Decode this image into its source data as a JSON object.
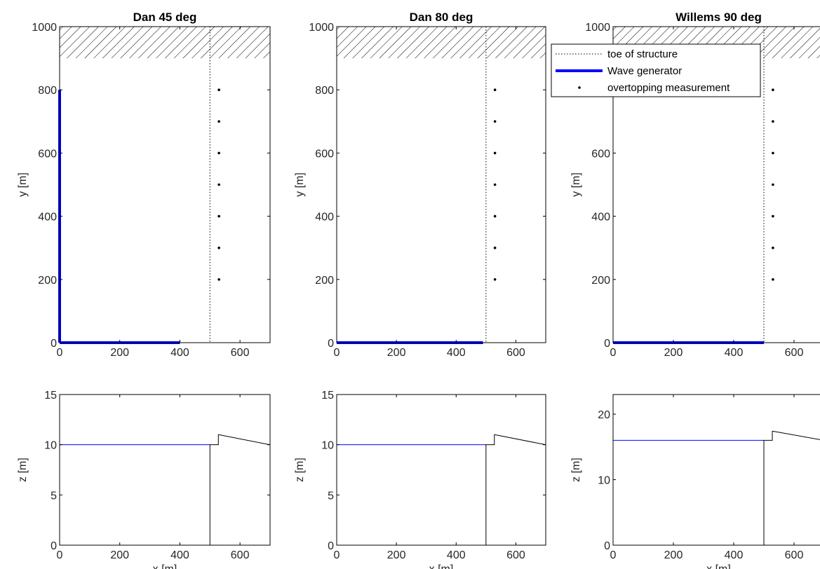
{
  "colors": {
    "wave_generator": "#0000ff",
    "water_level": "#0000ff",
    "structure": "#000000",
    "toe_line": "#000000",
    "points": "#000000",
    "hatch": "#000000"
  },
  "legend": {
    "placement": "top-right of third upper panel",
    "entries": [
      {
        "label": "toe of structure",
        "style": "dotted"
      },
      {
        "label": "Wave generator",
        "style": "thick-blue"
      },
      {
        "label": "overtopping measurement",
        "style": "dot"
      }
    ]
  },
  "chart_data": [
    {
      "type": "line",
      "title": "Dan 45 deg",
      "xlabel": "",
      "ylabel": "y [m]",
      "xlim": [
        0,
        700
      ],
      "ylim": [
        0,
        1000
      ],
      "xticks": [
        0,
        200,
        400,
        600
      ],
      "yticks": [
        0,
        200,
        400,
        600,
        800,
        1000
      ],
      "hatched_region": {
        "x": [
          0,
          700
        ],
        "y": [
          900,
          1000
        ]
      },
      "toe_of_structure_x": 500,
      "wave_generator": [
        {
          "x": [
            0,
            0
          ],
          "y": [
            800,
            0
          ]
        },
        {
          "x": [
            0,
            400
          ],
          "y": [
            0,
            0
          ]
        }
      ],
      "overtopping_points": {
        "x": [
          530,
          530,
          530,
          530,
          530,
          530,
          530
        ],
        "y": [
          200,
          300,
          400,
          500,
          600,
          700,
          800
        ]
      }
    },
    {
      "type": "line",
      "title": "Dan 80 deg",
      "xlabel": "",
      "ylabel": "y [m]",
      "xlim": [
        0,
        700
      ],
      "ylim": [
        0,
        1000
      ],
      "xticks": [
        0,
        200,
        400,
        600
      ],
      "yticks": [
        0,
        200,
        400,
        600,
        800,
        1000
      ],
      "hatched_region": {
        "x": [
          0,
          700
        ],
        "y": [
          900,
          1000
        ]
      },
      "toe_of_structure_x": 500,
      "wave_generator": [
        {
          "x": [
            0,
            490
          ],
          "y": [
            0,
            0
          ]
        }
      ],
      "overtopping_points": {
        "x": [
          530,
          530,
          530,
          530,
          530,
          530,
          530
        ],
        "y": [
          200,
          300,
          400,
          500,
          600,
          700,
          800
        ]
      }
    },
    {
      "type": "line",
      "title": "Willems 90 deg",
      "xlabel": "",
      "ylabel": "y [m]",
      "xlim": [
        0,
        700
      ],
      "ylim": [
        0,
        1000
      ],
      "xticks": [
        0,
        200,
        400,
        600
      ],
      "yticks": [
        0,
        200,
        400,
        600,
        1000
      ],
      "hatched_region": {
        "x": [
          0,
          700
        ],
        "y": [
          900,
          1000
        ]
      },
      "toe_of_structure_x": 500,
      "wave_generator": [
        {
          "x": [
            0,
            500
          ],
          "y": [
            0,
            0
          ]
        }
      ],
      "overtopping_points": {
        "x": [
          530,
          530,
          530,
          530,
          530,
          530,
          530
        ],
        "y": [
          200,
          300,
          400,
          500,
          600,
          700,
          800
        ]
      },
      "legend": true
    },
    {
      "type": "line",
      "title": "",
      "xlabel": "x [m]",
      "ylabel": "z [m]",
      "xlim": [
        0,
        700
      ],
      "ylim": [
        0,
        15
      ],
      "xticks": [
        0,
        200,
        400,
        600
      ],
      "yticks": [
        0,
        5,
        10,
        15
      ],
      "series": [
        {
          "role": "water",
          "x": [
            0,
            500
          ],
          "y": [
            10,
            10
          ]
        },
        {
          "role": "structure",
          "x": [
            500,
            500,
            500,
            528,
            528,
            530,
            700
          ],
          "y": [
            0,
            10,
            10,
            10,
            11,
            11,
            10
          ]
        }
      ]
    },
    {
      "type": "line",
      "title": "",
      "xlabel": "x [m]",
      "ylabel": "z [m]",
      "xlim": [
        0,
        700
      ],
      "ylim": [
        0,
        15
      ],
      "xticks": [
        0,
        200,
        400,
        600
      ],
      "yticks": [
        0,
        5,
        10,
        15
      ],
      "series": [
        {
          "role": "water",
          "x": [
            0,
            500
          ],
          "y": [
            10,
            10
          ]
        },
        {
          "role": "structure",
          "x": [
            500,
            500,
            500,
            528,
            528,
            530,
            700
          ],
          "y": [
            0,
            10,
            10,
            10,
            11,
            11,
            10
          ]
        }
      ]
    },
    {
      "type": "line",
      "title": "",
      "xlabel": "x [m]",
      "ylabel": "z [m]",
      "xlim": [
        0,
        700
      ],
      "ylim": [
        0,
        23
      ],
      "xticks": [
        0,
        200,
        400,
        600
      ],
      "yticks": [
        0,
        10,
        20
      ],
      "series": [
        {
          "role": "water",
          "x": [
            0,
            500
          ],
          "y": [
            16,
            16
          ]
        },
        {
          "role": "structure",
          "x": [
            500,
            500,
            500,
            528,
            528,
            530,
            700
          ],
          "y": [
            0,
            16,
            16,
            16,
            17.4,
            17.4,
            16
          ]
        }
      ]
    }
  ]
}
